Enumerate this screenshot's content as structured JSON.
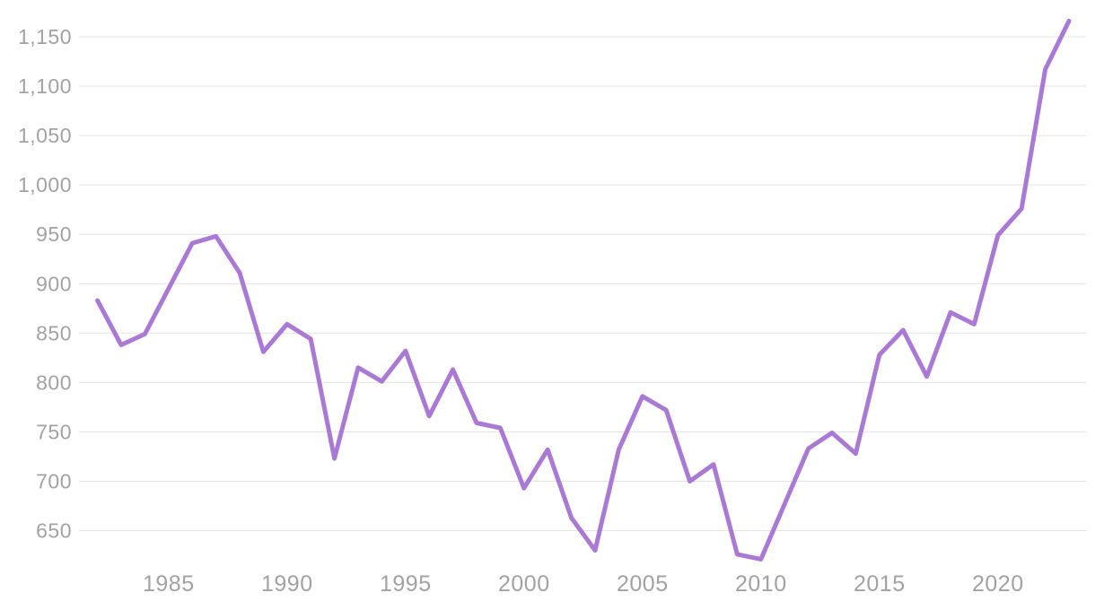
{
  "chart_data": {
    "type": "line",
    "title": "",
    "xlabel": "",
    "ylabel": "",
    "grid": "horizontal",
    "legend": "none",
    "x": [
      1982,
      1983,
      1984,
      1985,
      1986,
      1987,
      1988,
      1989,
      1990,
      1991,
      1992,
      1993,
      1994,
      1995,
      1996,
      1997,
      1998,
      1999,
      2000,
      2001,
      2002,
      2003,
      2004,
      2005,
      2006,
      2007,
      2008,
      2009,
      2010,
      2011,
      2012,
      2013,
      2014,
      2015,
      2016,
      2017,
      2018,
      2019,
      2020,
      2021,
      2022,
      2023
    ],
    "values": [
      883,
      838,
      849,
      895,
      941,
      948,
      911,
      831,
      859,
      844,
      723,
      815,
      801,
      832,
      766,
      813,
      759,
      754,
      693,
      732,
      663,
      630,
      732,
      786,
      772,
      700,
      717,
      626,
      621,
      677,
      733,
      749,
      728,
      828,
      853,
      806,
      871,
      859,
      949,
      976,
      1117,
      1166
    ],
    "xlim": [
      1982,
      2023
    ],
    "ylim": [
      650,
      1150
    ],
    "x_tick_values": [
      1985,
      1990,
      1995,
      2000,
      2005,
      2010,
      2015,
      2020
    ],
    "x_tick_labels": [
      "1985",
      "1990",
      "1995",
      "2000",
      "2005",
      "2010",
      "2015",
      "2020"
    ],
    "y_tick_values": [
      650,
      700,
      750,
      800,
      850,
      900,
      950,
      1000,
      1050,
      1100,
      1150
    ],
    "y_tick_labels": [
      "650",
      "700",
      "750",
      "800",
      "850",
      "900",
      "950",
      "1,000",
      "1,050",
      "1,100",
      "1,150"
    ],
    "colors": {
      "line": "#aa79d5",
      "grid": "#e3e3e3",
      "tick_label": "#a2a2a2",
      "background": "#ffffff"
    }
  }
}
